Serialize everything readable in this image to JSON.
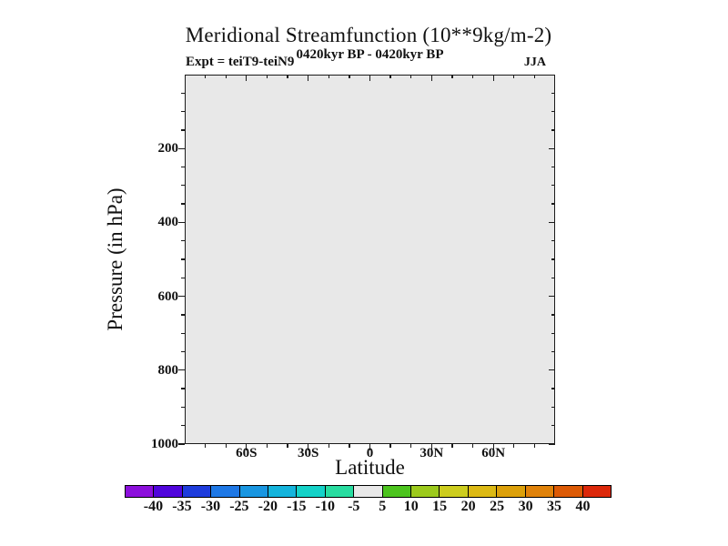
{
  "title": "Meridional Streamfunction (10**9kg/m-2)",
  "header": {
    "experiment": "Expt = teiT9-teiN9",
    "period": "0420kyr BP - 0420kyr BP",
    "season": "JJA"
  },
  "chart_data": {
    "type": "heatmap",
    "title": "Meridional Streamfunction (10**9kg/m-2)",
    "xlabel": "Latitude",
    "ylabel": "Pressure (in hPa)",
    "xlim_deg": [
      -90,
      90
    ],
    "ylim_hpa": [
      0,
      1000
    ],
    "x_ticks": [
      {
        "value": -60,
        "label": "60S"
      },
      {
        "value": -30,
        "label": "30S"
      },
      {
        "value": 0,
        "label": "0"
      },
      {
        "value": 30,
        "label": "30N"
      },
      {
        "value": 60,
        "label": "60N"
      }
    ],
    "x_minor_step_deg": 10,
    "y_ticks": [
      {
        "value": 200,
        "label": "200"
      },
      {
        "value": 400,
        "label": "400"
      },
      {
        "value": 600,
        "label": "600"
      },
      {
        "value": 800,
        "label": "800"
      },
      {
        "value": 1000,
        "label": "1000"
      }
    ],
    "y_minor_step_hpa": 50,
    "grid": false,
    "field": {
      "description": "Uniform near-zero difference field (0420kyr BP minus 0420kyr BP); entire plot lies in the -5 to 5 color bin",
      "uniform_value": 0,
      "fill_color": "#E8E8E8"
    },
    "colorbar": {
      "levels": [
        -40,
        -35,
        -30,
        -25,
        -20,
        -15,
        -10,
        -5,
        5,
        10,
        15,
        20,
        25,
        30,
        35,
        40
      ],
      "labels": [
        "-40",
        "-35",
        "-30",
        "-25",
        "-20",
        "-15",
        "-10",
        "-5",
        "5",
        "10",
        "15",
        "20",
        "25",
        "30",
        "35",
        "40"
      ],
      "colors": [
        "#8C0FDC",
        "#5005DC",
        "#1E3CDC",
        "#1E78E6",
        "#1996E1",
        "#14B4DC",
        "#14D2C8",
        "#28DCA0",
        "#E8E8E8",
        "#4CC41E",
        "#9CCA1C",
        "#CDCD1E",
        "#DCB914",
        "#DCA00A",
        "#E0820A",
        "#DC5A05",
        "#DC280A"
      ]
    }
  }
}
